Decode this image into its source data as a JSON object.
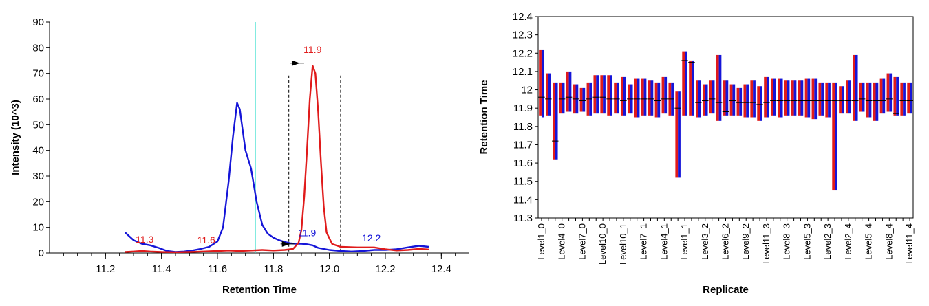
{
  "chart_data": [
    {
      "type": "line",
      "xlabel": "Retention Time",
      "ylabel": "Intensity (10^3)",
      "xlim": [
        11.0,
        12.5
      ],
      "ylim": [
        0,
        90
      ],
      "xticks": [
        "11.2",
        "11.4",
        "11.6",
        "11.8",
        "12.0",
        "12.2",
        "12.4"
      ],
      "yticks": [
        "0",
        "10",
        "20",
        "30",
        "40",
        "50",
        "60",
        "70",
        "80",
        "90"
      ],
      "colors": {
        "series1": "#1515d8",
        "series2": "#e01b1b",
        "marker": "#40e0d0",
        "boundary": "#000000"
      },
      "series": [
        {
          "color": "#1515d8",
          "points": [
            [
              11.27,
              8.0
            ],
            [
              11.3,
              5.0
            ],
            [
              11.33,
              3.6
            ],
            [
              11.36,
              3.0
            ],
            [
              11.39,
              2.0
            ],
            [
              11.42,
              0.8
            ],
            [
              11.45,
              0.4
            ],
            [
              11.48,
              0.6
            ],
            [
              11.51,
              1.0
            ],
            [
              11.54,
              1.6
            ],
            [
              11.57,
              2.4
            ],
            [
              11.6,
              4.5
            ],
            [
              11.62,
              10.0
            ],
            [
              11.64,
              28.0
            ],
            [
              11.655,
              45.0
            ],
            [
              11.67,
              58.5
            ],
            [
              11.68,
              56.0
            ],
            [
              11.69,
              48.0
            ],
            [
              11.7,
              40.0
            ],
            [
              11.72,
              33.0
            ],
            [
              11.74,
              20.0
            ],
            [
              11.76,
              11.0
            ],
            [
              11.78,
              7.5
            ],
            [
              11.8,
              6.0
            ],
            [
              11.82,
              5.0
            ],
            [
              11.84,
              4.3
            ],
            [
              11.86,
              3.8
            ],
            [
              11.88,
              3.6
            ],
            [
              11.9,
              3.6
            ],
            [
              11.92,
              3.4
            ],
            [
              11.94,
              3.0
            ],
            [
              11.96,
              2.0
            ],
            [
              12.0,
              1.2
            ],
            [
              12.04,
              0.8
            ],
            [
              12.08,
              0.6
            ],
            [
              12.12,
              0.8
            ],
            [
              12.16,
              1.2
            ],
            [
              12.2,
              1.2
            ],
            [
              12.24,
              1.5
            ],
            [
              12.28,
              2.2
            ],
            [
              12.32,
              2.8
            ],
            [
              12.355,
              2.4
            ]
          ]
        },
        {
          "color": "#e01b1b",
          "points": [
            [
              11.27,
              0.4
            ],
            [
              11.3,
              0.6
            ],
            [
              11.33,
              0.8
            ],
            [
              11.36,
              0.6
            ],
            [
              11.4,
              0.4
            ],
            [
              11.45,
              0.3
            ],
            [
              11.5,
              0.4
            ],
            [
              11.55,
              0.6
            ],
            [
              11.6,
              0.8
            ],
            [
              11.64,
              1.0
            ],
            [
              11.68,
              0.8
            ],
            [
              11.72,
              1.0
            ],
            [
              11.76,
              1.2
            ],
            [
              11.8,
              1.0
            ],
            [
              11.84,
              1.2
            ],
            [
              11.87,
              1.6
            ],
            [
              11.89,
              4.0
            ],
            [
              11.9,
              9.0
            ],
            [
              11.91,
              22.0
            ],
            [
              11.92,
              40.0
            ],
            [
              11.93,
              60.0
            ],
            [
              11.94,
              73.0
            ],
            [
              11.95,
              70.0
            ],
            [
              11.96,
              55.0
            ],
            [
              11.97,
              35.0
            ],
            [
              11.98,
              18.0
            ],
            [
              11.99,
              8.0
            ],
            [
              12.01,
              3.5
            ],
            [
              12.04,
              2.4
            ],
            [
              12.1,
              2.2
            ],
            [
              12.16,
              2.2
            ],
            [
              12.2,
              1.5
            ],
            [
              12.24,
              1.0
            ],
            [
              12.28,
              1.2
            ],
            [
              12.32,
              1.6
            ],
            [
              12.355,
              1.4
            ]
          ]
        }
      ],
      "annotations": [
        {
          "text": "11.3",
          "x": 11.34,
          "y": 4.0,
          "color": "#e01b1b"
        },
        {
          "text": "11.6",
          "x": 11.56,
          "y": 3.8,
          "color": "#e01b1b"
        },
        {
          "text": "11.9",
          "x": 11.94,
          "y": 78.0,
          "color": "#e01b1b"
        },
        {
          "text": "11.9",
          "x": 11.92,
          "y": 6.5,
          "color": "#1515d8"
        },
        {
          "text": "12.2",
          "x": 12.15,
          "y": 4.5,
          "color": "#1515d8"
        }
      ],
      "marker_line_x": 11.735,
      "integration_bounds": [
        11.855,
        12.04
      ],
      "integration_top_y": 74.0,
      "arrows": [
        {
          "x": 11.895,
          "y": 74.0,
          "color": "#000000"
        },
        {
          "x": 11.86,
          "y": 3.5,
          "color": "#000000"
        }
      ]
    },
    {
      "type": "bar",
      "xlabel": "Replicate",
      "ylabel": "Retention Time",
      "ylim": [
        11.3,
        12.4
      ],
      "yticks": [
        "11.3",
        "11.4",
        "11.5",
        "11.6",
        "11.7",
        "11.8",
        "11.9",
        "12",
        "12.1",
        "12.2",
        "12.3",
        "12.4"
      ],
      "xtick_labels": [
        "Level1_0",
        "Level4_0",
        "Level7_0",
        "Level10_0",
        "Level10_1",
        "Level7_1",
        "Level4_1",
        "Level1_1",
        "Level3_2",
        "Level6_2",
        "Level9_2",
        "Level11_3",
        "Level8_3",
        "Level5_3",
        "Level2_3",
        "Level2_4",
        "Level5_4",
        "Level8_4",
        "Level11_4"
      ],
      "xtick_every": 3,
      "replicate_count": 55,
      "colors": {
        "red": "#e01b1b",
        "blue": "#1515d8"
      },
      "bars": [
        {
          "red": [
            11.86,
            12.22
          ],
          "blue": [
            11.85,
            12.22
          ],
          "mean": 11.96
        },
        {
          "red": [
            11.86,
            12.09
          ],
          "blue": [
            11.86,
            12.09
          ],
          "mean": 11.95
        },
        {
          "red": [
            11.62,
            12.04
          ],
          "blue": [
            11.62,
            12.04
          ],
          "mean": 11.72
        },
        {
          "red": [
            11.87,
            12.04
          ],
          "blue": [
            11.87,
            12.04
          ],
          "mean": 11.95
        },
        {
          "red": [
            11.88,
            12.1
          ],
          "blue": [
            11.88,
            12.1
          ],
          "mean": 11.96
        },
        {
          "red": [
            11.87,
            12.03
          ],
          "blue": [
            11.87,
            12.03
          ],
          "mean": 11.95
        },
        {
          "red": [
            11.88,
            12.01
          ],
          "blue": [
            11.88,
            12.01
          ],
          "mean": 11.94
        },
        {
          "red": [
            11.86,
            12.04
          ],
          "blue": [
            11.86,
            12.04
          ],
          "mean": 11.95
        },
        {
          "red": [
            11.87,
            12.08
          ],
          "blue": [
            11.87,
            12.08
          ],
          "mean": 11.96
        },
        {
          "red": [
            11.87,
            12.08
          ],
          "blue": [
            11.87,
            12.08
          ],
          "mean": 11.96
        },
        {
          "red": [
            11.86,
            12.08
          ],
          "blue": [
            11.86,
            12.08
          ],
          "mean": 11.95
        },
        {
          "red": [
            11.87,
            12.04
          ],
          "blue": [
            11.87,
            12.04
          ],
          "mean": 11.95
        },
        {
          "red": [
            11.86,
            12.07
          ],
          "blue": [
            11.86,
            12.07
          ],
          "mean": 11.94
        },
        {
          "red": [
            11.87,
            12.03
          ],
          "blue": [
            11.87,
            12.03
          ],
          "mean": 11.95
        },
        {
          "red": [
            11.85,
            12.06
          ],
          "blue": [
            11.85,
            12.06
          ],
          "mean": 11.95
        },
        {
          "red": [
            11.86,
            12.06
          ],
          "blue": [
            11.86,
            12.06
          ],
          "mean": 11.95
        },
        {
          "red": [
            11.86,
            12.05
          ],
          "blue": [
            11.86,
            12.05
          ],
          "mean": 11.95
        },
        {
          "red": [
            11.85,
            12.04
          ],
          "blue": [
            11.85,
            12.04
          ],
          "mean": 11.94
        },
        {
          "red": [
            11.87,
            12.07
          ],
          "blue": [
            11.87,
            12.07
          ],
          "mean": 11.95
        },
        {
          "red": [
            11.86,
            12.04
          ],
          "blue": [
            11.86,
            12.04
          ],
          "mean": 11.95
        },
        {
          "red": [
            11.52,
            11.99
          ],
          "blue": [
            11.52,
            11.99
          ],
          "mean": 11.9
        },
        {
          "red": [
            11.86,
            12.21
          ],
          "blue": [
            11.86,
            12.21
          ],
          "mean": 12.16
        },
        {
          "red": [
            11.86,
            12.16
          ],
          "blue": [
            11.86,
            12.16
          ],
          "mean": 12.15
        },
        {
          "red": [
            11.85,
            12.05
          ],
          "blue": [
            11.85,
            12.05
          ],
          "mean": 11.93
        },
        {
          "red": [
            11.86,
            12.03
          ],
          "blue": [
            11.86,
            12.03
          ],
          "mean": 11.94
        },
        {
          "red": [
            11.87,
            12.05
          ],
          "blue": [
            11.87,
            12.05
          ],
          "mean": 11.95
        },
        {
          "red": [
            11.83,
            12.19
          ],
          "blue": [
            11.83,
            12.19
          ],
          "mean": 11.93
        },
        {
          "red": [
            11.86,
            12.05
          ],
          "blue": [
            11.86,
            12.05
          ],
          "mean": 11.88
        },
        {
          "red": [
            11.86,
            12.03
          ],
          "blue": [
            11.86,
            12.03
          ],
          "mean": 11.94
        },
        {
          "red": [
            11.86,
            12.01
          ],
          "blue": [
            11.86,
            12.01
          ],
          "mean": 11.93
        },
        {
          "red": [
            11.85,
            12.03
          ],
          "blue": [
            11.85,
            12.03
          ],
          "mean": 11.93
        },
        {
          "red": [
            11.85,
            12.05
          ],
          "blue": [
            11.85,
            12.05
          ],
          "mean": 11.93
        },
        {
          "red": [
            11.83,
            12.02
          ],
          "blue": [
            11.83,
            12.02
          ],
          "mean": 11.92
        },
        {
          "red": [
            11.85,
            12.07
          ],
          "blue": [
            11.85,
            12.07
          ],
          "mean": 11.93
        },
        {
          "red": [
            11.86,
            12.06
          ],
          "blue": [
            11.86,
            12.06
          ],
          "mean": 11.94
        },
        {
          "red": [
            11.85,
            12.06
          ],
          "blue": [
            11.85,
            12.06
          ],
          "mean": 11.94
        },
        {
          "red": [
            11.86,
            12.05
          ],
          "blue": [
            11.86,
            12.05
          ],
          "mean": 11.94
        },
        {
          "red": [
            11.86,
            12.05
          ],
          "blue": [
            11.86,
            12.05
          ],
          "mean": 11.94
        },
        {
          "red": [
            11.86,
            12.05
          ],
          "blue": [
            11.86,
            12.05
          ],
          "mean": 11.94
        },
        {
          "red": [
            11.85,
            12.06
          ],
          "blue": [
            11.85,
            12.06
          ],
          "mean": 11.94
        },
        {
          "red": [
            11.84,
            12.06
          ],
          "blue": [
            11.84,
            12.06
          ],
          "mean": 11.94
        },
        {
          "red": [
            11.86,
            12.04
          ],
          "blue": [
            11.86,
            12.04
          ],
          "mean": 11.94
        },
        {
          "red": [
            11.85,
            12.04
          ],
          "blue": [
            11.85,
            12.04
          ],
          "mean": 11.94
        },
        {
          "red": [
            11.45,
            12.04
          ],
          "blue": [
            11.45,
            12.04
          ],
          "mean": 11.94
        },
        {
          "red": [
            11.87,
            12.02
          ],
          "blue": [
            11.87,
            12.02
          ],
          "mean": 11.94
        },
        {
          "red": [
            11.87,
            12.05
          ],
          "blue": [
            11.87,
            12.05
          ],
          "mean": 11.94
        },
        {
          "red": [
            11.83,
            12.19
          ],
          "blue": [
            11.83,
            12.19
          ],
          "mean": 11.94
        },
        {
          "red": [
            11.88,
            12.04
          ],
          "blue": [
            11.88,
            12.04
          ],
          "mean": 11.95
        },
        {
          "red": [
            11.85,
            12.04
          ],
          "blue": [
            11.85,
            12.04
          ],
          "mean": 11.94
        },
        {
          "red": [
            11.83,
            12.04
          ],
          "blue": [
            11.83,
            12.04
          ],
          "mean": 11.94
        },
        {
          "red": [
            11.87,
            12.06
          ],
          "blue": [
            11.87,
            12.06
          ],
          "mean": 11.94
        },
        {
          "red": [
            11.88,
            12.09
          ],
          "blue": [
            11.88,
            12.09
          ],
          "mean": 11.95
        },
        {
          "red": [
            11.86,
            12.07
          ],
          "blue": [
            11.86,
            12.07
          ],
          "mean": 11.87
        },
        {
          "red": [
            11.86,
            12.04
          ],
          "blue": [
            11.86,
            12.04
          ],
          "mean": 11.94
        },
        {
          "red": [
            11.87,
            12.04
          ],
          "blue": [
            11.87,
            12.04
          ],
          "mean": 11.94
        }
      ]
    }
  ]
}
